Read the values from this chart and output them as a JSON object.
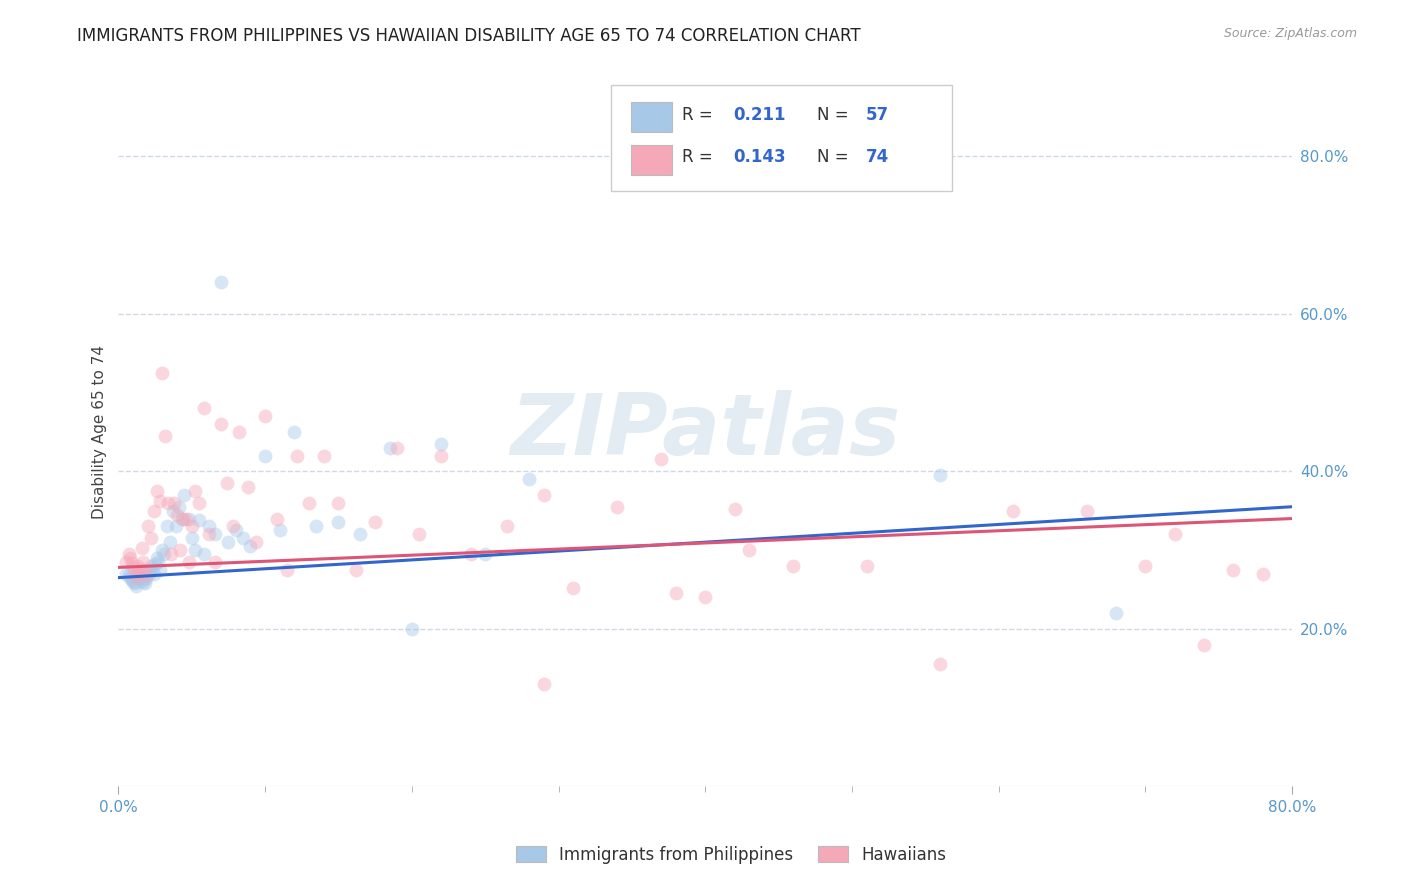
{
  "title": "IMMIGRANTS FROM PHILIPPINES VS HAWAIIAN DISABILITY AGE 65 TO 74 CORRELATION CHART",
  "source": "Source: ZipAtlas.com",
  "ylabel": "Disability Age 65 to 74",
  "xlim": [
    0.0,
    0.8
  ],
  "ylim": [
    0.0,
    0.9
  ],
  "x_ticks_major": [
    0.0,
    0.8
  ],
  "x_ticks_minor": [
    0.1,
    0.2,
    0.3,
    0.4,
    0.5,
    0.6,
    0.7
  ],
  "x_tick_labels_major": [
    "0.0%",
    "80.0%"
  ],
  "y_ticks": [
    0.2,
    0.4,
    0.6,
    0.8
  ],
  "y_tick_labels": [
    "20.0%",
    "40.0%",
    "60.0%",
    "80.0%"
  ],
  "legend_series": [
    {
      "label": "Immigrants from Philippines",
      "color": "#a8c8e8",
      "R": "0.211",
      "N": "57"
    },
    {
      "label": "Hawaiians",
      "color": "#f5a8b8",
      "R": "0.143",
      "N": "74"
    }
  ],
  "blue_scatter_x": [
    0.005,
    0.007,
    0.008,
    0.009,
    0.01,
    0.011,
    0.012,
    0.013,
    0.014,
    0.015,
    0.016,
    0.017,
    0.018,
    0.019,
    0.02,
    0.021,
    0.022,
    0.023,
    0.024,
    0.025,
    0.026,
    0.027,
    0.028,
    0.03,
    0.031,
    0.033,
    0.035,
    0.037,
    0.039,
    0.041,
    0.043,
    0.045,
    0.048,
    0.05,
    0.052,
    0.055,
    0.058,
    0.062,
    0.066,
    0.07,
    0.075,
    0.08,
    0.085,
    0.09,
    0.1,
    0.11,
    0.12,
    0.135,
    0.15,
    0.165,
    0.185,
    0.2,
    0.22,
    0.25,
    0.28,
    0.56,
    0.68
  ],
  "blue_scatter_y": [
    0.27,
    0.268,
    0.265,
    0.262,
    0.26,
    0.258,
    0.255,
    0.27,
    0.268,
    0.265,
    0.262,
    0.26,
    0.258,
    0.264,
    0.268,
    0.275,
    0.28,
    0.273,
    0.27,
    0.282,
    0.29,
    0.285,
    0.275,
    0.3,
    0.295,
    0.33,
    0.31,
    0.35,
    0.33,
    0.355,
    0.34,
    0.37,
    0.34,
    0.315,
    0.3,
    0.338,
    0.295,
    0.33,
    0.32,
    0.64,
    0.31,
    0.325,
    0.315,
    0.305,
    0.42,
    0.325,
    0.45,
    0.33,
    0.335,
    0.32,
    0.43,
    0.2,
    0.435,
    0.295,
    0.39,
    0.395,
    0.22
  ],
  "pink_scatter_x": [
    0.005,
    0.007,
    0.008,
    0.009,
    0.01,
    0.011,
    0.012,
    0.013,
    0.014,
    0.015,
    0.016,
    0.017,
    0.018,
    0.019,
    0.02,
    0.022,
    0.024,
    0.026,
    0.028,
    0.03,
    0.032,
    0.034,
    0.036,
    0.038,
    0.04,
    0.042,
    0.044,
    0.046,
    0.048,
    0.05,
    0.052,
    0.055,
    0.058,
    0.062,
    0.066,
    0.07,
    0.074,
    0.078,
    0.082,
    0.088,
    0.094,
    0.1,
    0.108,
    0.115,
    0.122,
    0.13,
    0.14,
    0.15,
    0.162,
    0.175,
    0.19,
    0.205,
    0.22,
    0.24,
    0.265,
    0.29,
    0.31,
    0.34,
    0.37,
    0.4,
    0.43,
    0.46,
    0.51,
    0.56,
    0.61,
    0.66,
    0.7,
    0.72,
    0.74,
    0.76,
    0.78,
    0.29,
    0.38,
    0.42
  ],
  "pink_scatter_y": [
    0.285,
    0.295,
    0.29,
    0.283,
    0.278,
    0.272,
    0.266,
    0.28,
    0.276,
    0.27,
    0.302,
    0.285,
    0.275,
    0.268,
    0.33,
    0.315,
    0.35,
    0.375,
    0.362,
    0.525,
    0.445,
    0.36,
    0.295,
    0.36,
    0.345,
    0.3,
    0.34,
    0.34,
    0.285,
    0.33,
    0.375,
    0.36,
    0.48,
    0.32,
    0.285,
    0.46,
    0.385,
    0.33,
    0.45,
    0.38,
    0.31,
    0.47,
    0.34,
    0.275,
    0.42,
    0.36,
    0.42,
    0.36,
    0.275,
    0.335,
    0.43,
    0.32,
    0.42,
    0.295,
    0.33,
    0.37,
    0.252,
    0.355,
    0.415,
    0.24,
    0.3,
    0.28,
    0.28,
    0.155,
    0.35,
    0.35,
    0.28,
    0.32,
    0.18,
    0.275,
    0.27,
    0.13,
    0.246,
    0.352
  ],
  "blue_line_x": [
    0.0,
    0.8
  ],
  "blue_line_y": [
    0.265,
    0.355
  ],
  "pink_line_x": [
    0.0,
    0.8
  ],
  "pink_line_y": [
    0.278,
    0.34
  ],
  "watermark": "ZIPatlas",
  "background_color": "#ffffff",
  "scatter_size": 100,
  "scatter_alpha": 0.45,
  "blue_color": "#a8c8e8",
  "pink_color": "#f5a8b8",
  "blue_line_color": "#3366cc",
  "pink_line_color": "#dd5577",
  "grid_color": "#d0d8e8",
  "tick_color": "#5599cc",
  "title_fontsize": 12,
  "axis_label_fontsize": 11,
  "legend_R_color": "#3366cc",
  "legend_N_color": "#3366cc"
}
